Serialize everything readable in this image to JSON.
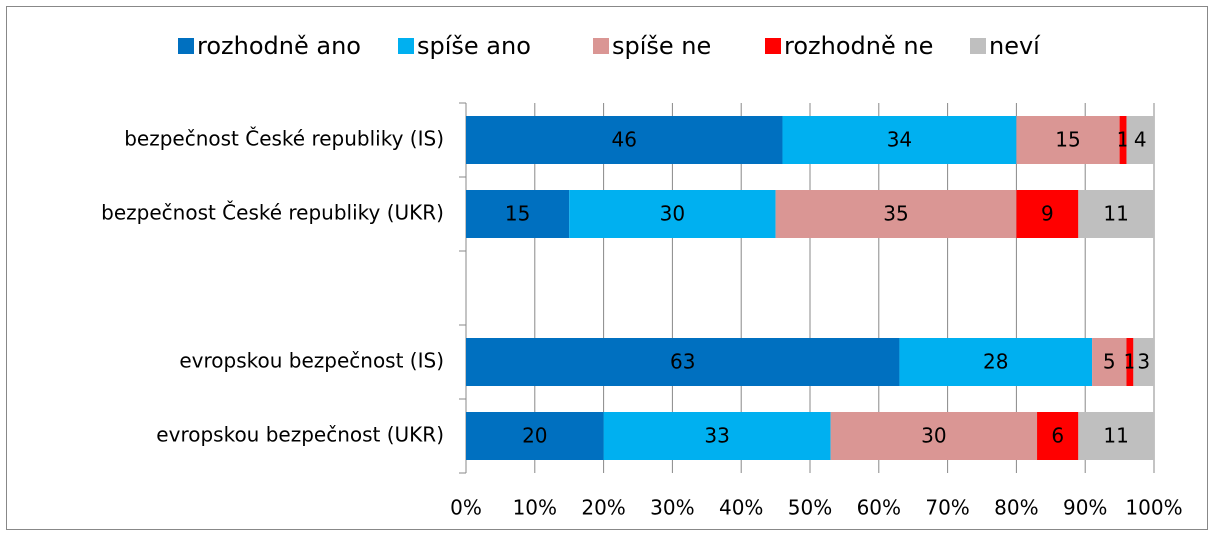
{
  "chart_data": {
    "type": "stacked_barh",
    "categories": [
      "bezpečnost České republiky (IS)",
      "bezpečnost České republiky (UKR)",
      null,
      "evropskou bezpečnost (IS)",
      "evropskou bezpečnost (UKR)"
    ],
    "series": [
      {
        "name": "rozhodně ano",
        "color": "#0070C0",
        "values": [
          46,
          15,
          null,
          63,
          20
        ]
      },
      {
        "name": "spíše ano",
        "color": "#00B0F0",
        "values": [
          34,
          30,
          null,
          28,
          33
        ]
      },
      {
        "name": "spíše ne",
        "color": "#DA9694",
        "values": [
          15,
          35,
          null,
          5,
          30
        ]
      },
      {
        "name": "rozhodně ne",
        "color": "#FF0000",
        "values": [
          1,
          9,
          null,
          1,
          6
        ]
      },
      {
        "name": "neví",
        "color": "#BFBFBF",
        "values": [
          4,
          11,
          null,
          3,
          11
        ]
      }
    ],
    "xlim": [
      0,
      100
    ],
    "xticks": [
      {
        "value": 0,
        "label": "0%"
      },
      {
        "value": 10,
        "label": "10%"
      },
      {
        "value": 20,
        "label": "20%"
      },
      {
        "value": 30,
        "label": "30%"
      },
      {
        "value": 40,
        "label": "40%"
      },
      {
        "value": 50,
        "label": "50%"
      },
      {
        "value": 60,
        "label": "60%"
      },
      {
        "value": 70,
        "label": "70%"
      },
      {
        "value": 80,
        "label": "80%"
      },
      {
        "value": 90,
        "label": "90%"
      },
      {
        "value": 100,
        "label": "100%"
      }
    ],
    "grid": true,
    "legend": "top"
  }
}
